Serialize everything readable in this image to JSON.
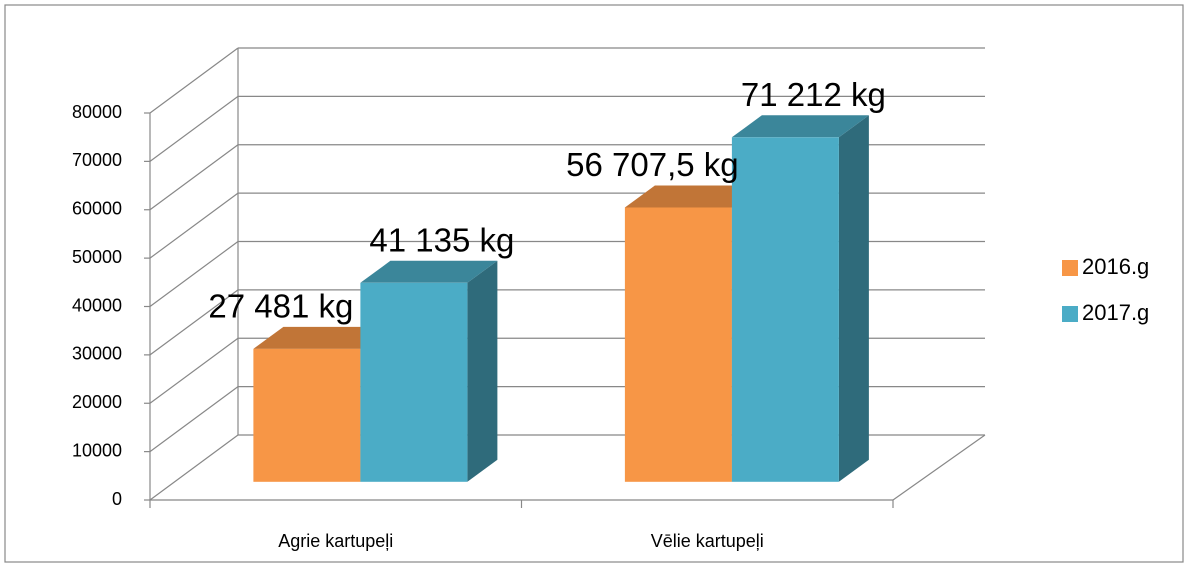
{
  "chart_data": {
    "type": "bar3d",
    "categories": [
      "Agrie kartupeļi",
      "Vēlie kartupeļi"
    ],
    "series": [
      {
        "name": "2016.g",
        "color": "#F79646",
        "values": [
          27481,
          56707.5
        ],
        "value_labels": [
          "27 481 kg",
          "56 707,5 kg"
        ]
      },
      {
        "name": "2017.g",
        "color": "#4BACC6",
        "values": [
          41135,
          71212
        ],
        "value_labels": [
          "41 135 kg",
          "71 212 kg"
        ]
      }
    ],
    "ylim": [
      0,
      80000
    ],
    "yticks": [
      0,
      10000,
      20000,
      30000,
      40000,
      50000,
      60000,
      70000,
      80000
    ],
    "grid": true,
    "legend": "right"
  }
}
